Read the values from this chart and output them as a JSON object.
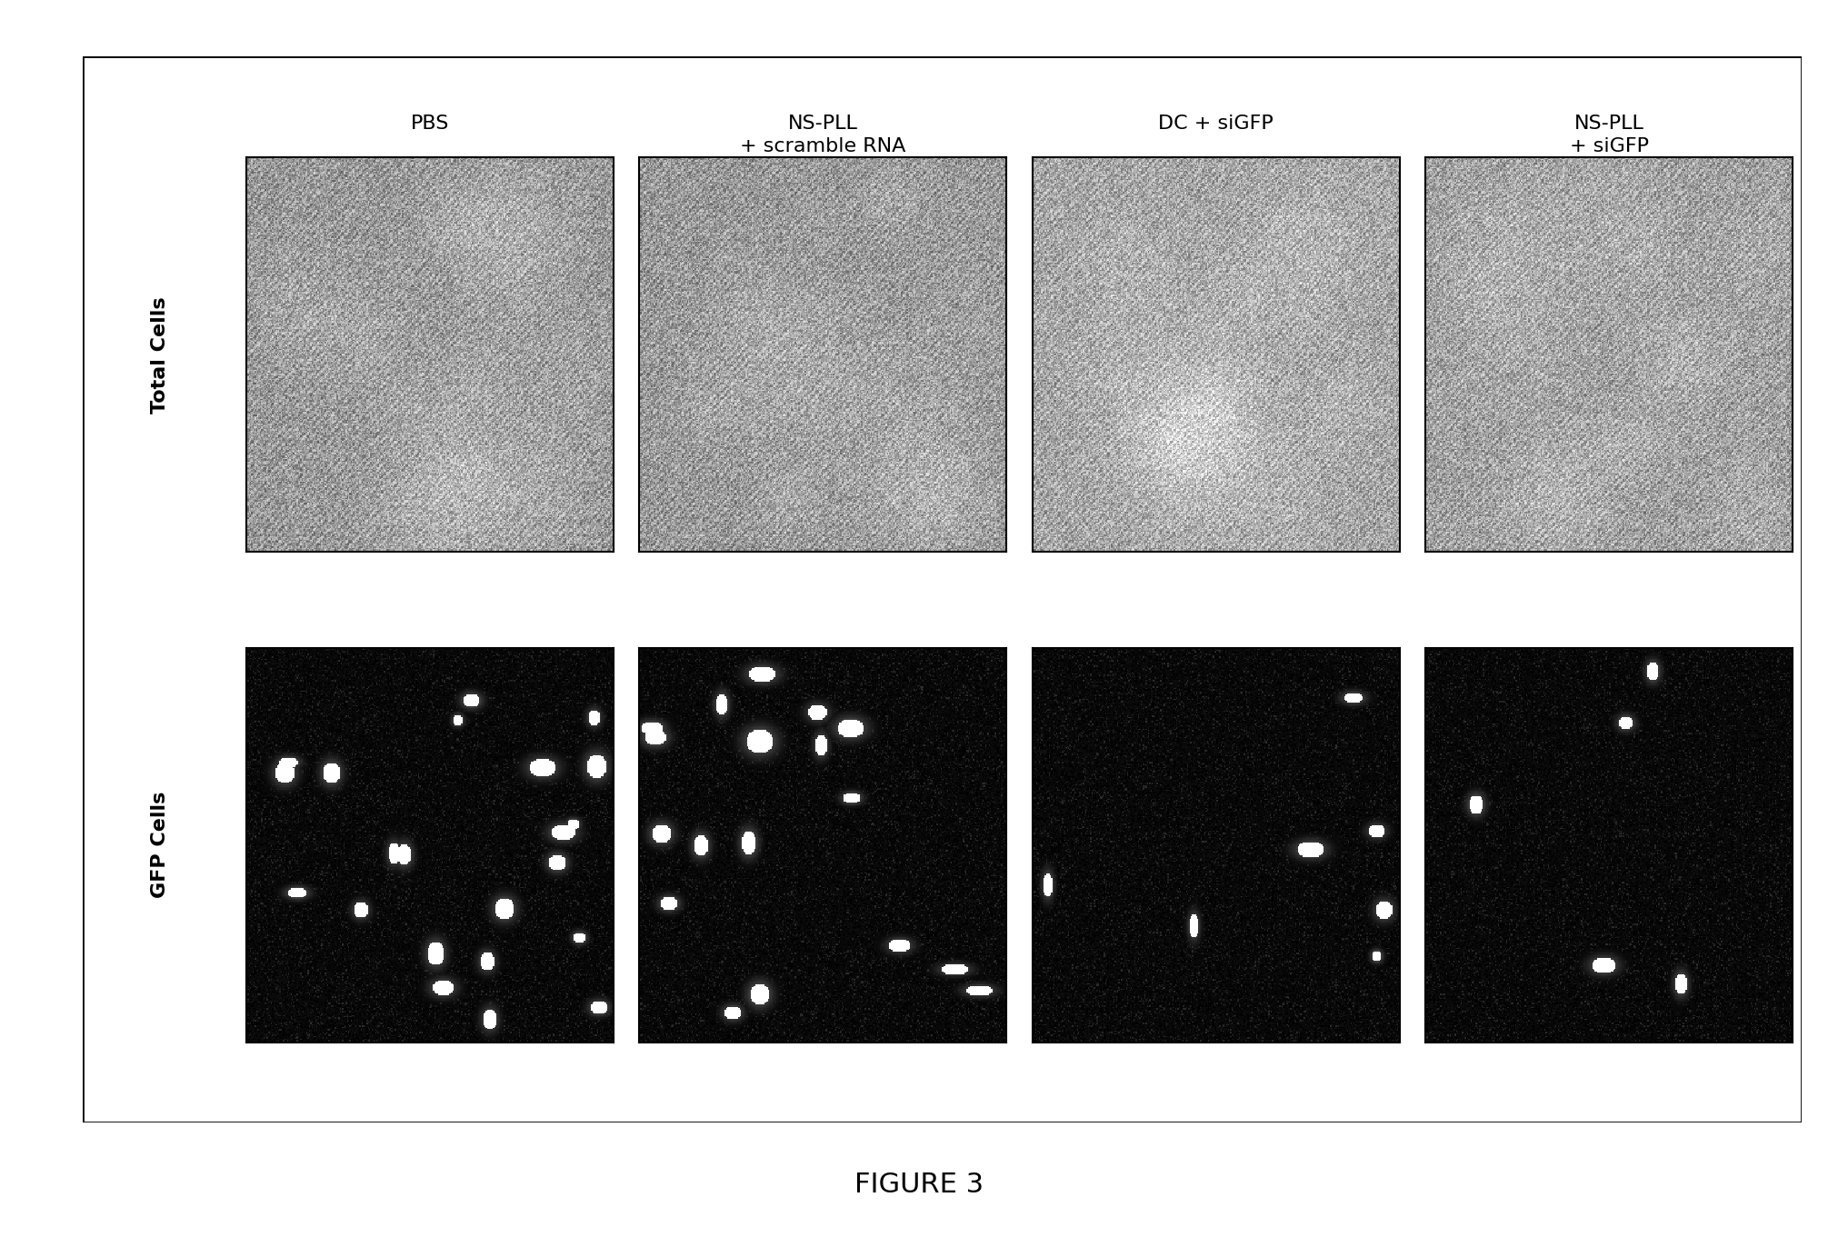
{
  "title": "FIGURE 3",
  "col_labels": [
    "PBS",
    "NS-PLL\n+ scramble RNA",
    "DC + siGFP",
    "NS-PLL\n+ siGFP"
  ],
  "row_labels": [
    "Total Cells",
    "GFP Cells"
  ],
  "background_color": "#ffffff",
  "outer_box_color": "#000000",
  "title_fontsize": 22,
  "col_label_fontsize": 16,
  "row_label_fontsize": 16,
  "bf_mean": [
    0.6,
    0.6,
    0.65,
    0.63
  ],
  "fl_n_spots": [
    22,
    18,
    7,
    5
  ],
  "bf_seeds": [
    11,
    21,
    31,
    41
  ],
  "fl_seeds": [
    101,
    201,
    301,
    401
  ]
}
